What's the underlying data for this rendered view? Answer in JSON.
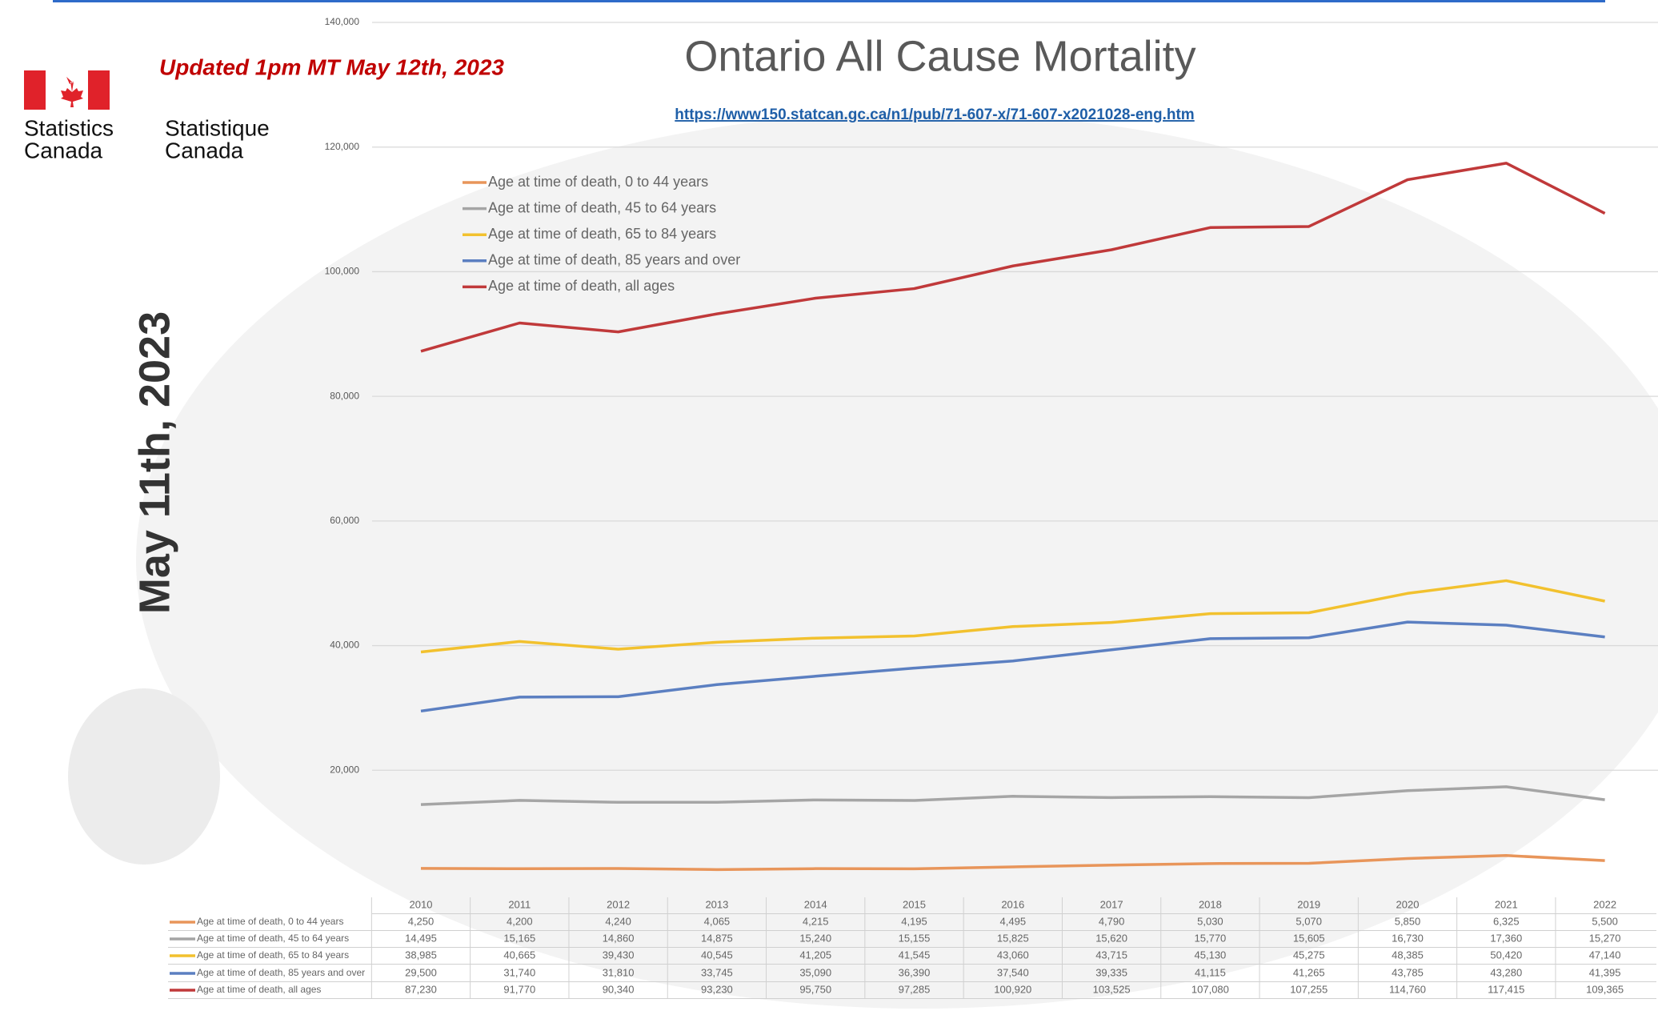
{
  "chart_data": {
    "type": "line",
    "title": "Ontario All Cause Mortality",
    "subtitle": "https://www150.statcan.gc.ca/n1/pub/71-607-x/71-607-x2021028-eng.htm",
    "annotations": [
      "Updated 1pm MT May 12th, 2023",
      "May 11th, 2023"
    ],
    "logo": {
      "english": [
        "Statistics",
        "Canada"
      ],
      "french": [
        "Statistique",
        "Canada"
      ]
    },
    "categories": [
      "2010",
      "2011",
      "2012",
      "2013",
      "2014",
      "2015",
      "2016",
      "2017",
      "2018",
      "2019",
      "2020",
      "2021",
      "2022"
    ],
    "series": [
      {
        "name": "Age at time of death, 0 to 44 years",
        "color": "#e8955a",
        "values": [
          4250,
          4200,
          4240,
          4065,
          4215,
          4195,
          4495,
          4790,
          5030,
          5070,
          5850,
          6325,
          5500
        ],
        "value_labels": [
          "4,250",
          "4,200",
          "4,240",
          "4,065",
          "4,215",
          "4,195",
          "4,495",
          "4,790",
          "5,030",
          "5,070",
          "5,850",
          "6,325",
          "5,500"
        ]
      },
      {
        "name": "Age at time of death, 45 to 64 years",
        "color": "#a5a5a5",
        "values": [
          14495,
          15165,
          14860,
          14875,
          15240,
          15155,
          15825,
          15620,
          15770,
          15605,
          16730,
          17360,
          15270
        ],
        "value_labels": [
          "14,495",
          "15,165",
          "14,860",
          "14,875",
          "15,240",
          "15,155",
          "15,825",
          "15,620",
          "15,770",
          "15,605",
          "16,730",
          "17,360",
          "15,270"
        ]
      },
      {
        "name": "Age at time of death, 65 to 84 years",
        "color": "#f2c12e",
        "values": [
          38985,
          40665,
          39430,
          40545,
          41205,
          41545,
          43060,
          43715,
          45130,
          45275,
          48385,
          50420,
          47140
        ],
        "value_labels": [
          "38,985",
          "40,665",
          "39,430",
          "40,545",
          "41,205",
          "41,545",
          "43,060",
          "43,715",
          "45,130",
          "45,275",
          "48,385",
          "50,420",
          "47,140"
        ]
      },
      {
        "name": "Age at time of death, 85 years and over",
        "color": "#5b7fc1",
        "values": [
          29500,
          31740,
          31810,
          33745,
          35090,
          36390,
          37540,
          39335,
          41115,
          41265,
          43785,
          43280,
          41395
        ],
        "value_labels": [
          "29,500",
          "31,740",
          "31,810",
          "33,745",
          "35,090",
          "36,390",
          "37,540",
          "39,335",
          "41,115",
          "41,265",
          "43,785",
          "43,280",
          "41,395"
        ]
      },
      {
        "name": "Age at time of death, all ages",
        "color": "#c0393a",
        "values": [
          87230,
          91770,
          90340,
          93230,
          95750,
          97285,
          100920,
          103525,
          107080,
          107255,
          114760,
          117415,
          109365
        ],
        "value_labels": [
          "87,230",
          "91,770",
          "90,340",
          "93,230",
          "95,750",
          "97,285",
          "100,920",
          "103,525",
          "107,080",
          "107,255",
          "114,760",
          "117,415",
          "109,365"
        ]
      }
    ],
    "ylim": [
      0,
      140000
    ],
    "yticks": [
      {
        "value": 20000,
        "label": "20,000"
      },
      {
        "value": 40000,
        "label": "40,000"
      },
      {
        "value": 60000,
        "label": "60,000"
      },
      {
        "value": 80000,
        "label": "80,000"
      },
      {
        "value": 100000,
        "label": "100,000"
      },
      {
        "value": 120000,
        "label": "120,000"
      },
      {
        "value": 140000,
        "label": "140,000"
      }
    ],
    "grid": true
  }
}
